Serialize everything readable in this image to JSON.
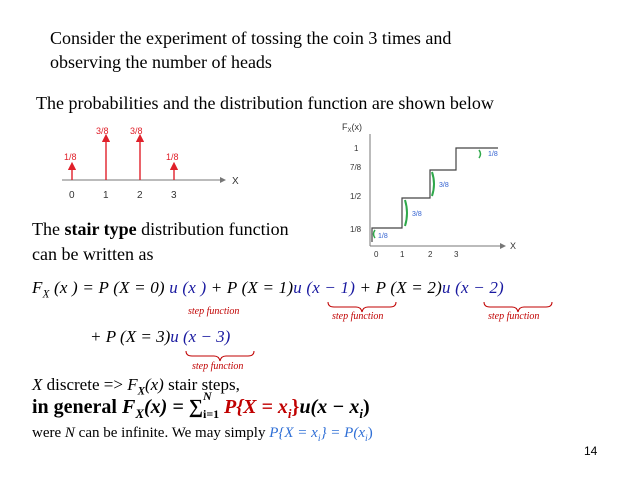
{
  "intro": {
    "line1": "Consider the experiment of tossing the coin 3 times and",
    "line2": "observing the number of heads"
  },
  "subtitle": "The probabilities and  the distribution function are shown below",
  "pmf_chart": {
    "axis_label": "X",
    "x_ticks": [
      "0",
      "1",
      "2",
      "3"
    ],
    "values": [
      "1/8",
      "3/8",
      "3/8",
      "1/8"
    ],
    "color_stems": "#e0202a"
  },
  "cdf_chart": {
    "ylabel": "F",
    "ylabel_sub": "X",
    "ylabel_tail": "(x)",
    "axis_label": "X",
    "y_ticks": [
      "1",
      "7/8",
      "1/2",
      "1/8"
    ],
    "x_ticks": [
      "0",
      "1",
      "2",
      "3"
    ],
    "jumps": [
      "1/8",
      "3/8",
      "3/8",
      "1/8"
    ],
    "bracket_color": "#2ea84a",
    "jump_color": "#2f5fd0"
  },
  "stair": {
    "line1_pre": "The ",
    "line1_bold": "stair type",
    "line1_post": " distribution function",
    "line2": "can be written as"
  },
  "formula": {
    "lhs": "F",
    "lhs_sub": "X",
    "lhs_arg": " (x ) = P (X  = 0)  ",
    "term0": "u (x )",
    "term1_pre": "  + P (X  = 1)",
    "term1": "u (x  − 1)",
    "term2_pre": " + P (X  = 2)",
    "term2": "u (x  − 2)",
    "term3_pre": "+ P (X  = 3)",
    "term3": "u (x  − 3)",
    "step_label": "step  function"
  },
  "notes": {
    "discrete_a": "X",
    "discrete_b": " discrete => ",
    "discrete_c": "F",
    "discrete_c_sub": "X",
    "discrete_d": "(x)",
    "discrete_e": " stair steps,",
    "general_pre": "in general ",
    "general_F": "F",
    "general_F_sub": "X",
    "general_eq": "(x) = ∑",
    "general_sum_sub": "i=1",
    "general_sum_sup": "N",
    "general_P": " P{X = x",
    "general_P_sub": "i",
    "general_P_end": "}",
    "general_u": "u(x − x",
    "general_u_sub": "i",
    "general_u_end": ")",
    "were_a": "were ",
    "were_N": "N",
    "were_b": " can be infinite. We may simply ",
    "were_blue": "P{X = x",
    "were_blue_sub": "i",
    "were_blue_mid": "} = P(x",
    "were_blue_sub2": "i",
    "were_blue_end": ")"
  },
  "page_number": "14"
}
